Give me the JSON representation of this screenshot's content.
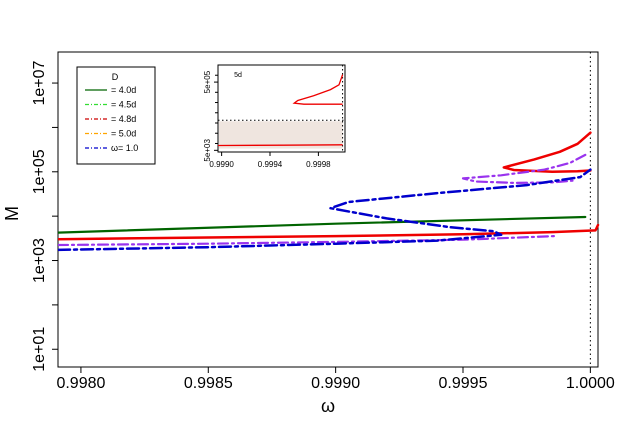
{
  "chart_data": {
    "type": "line",
    "xlabel": "ω",
    "ylabel": "M",
    "xlim": [
      0.99791,
      1.00003
    ],
    "ylog": true,
    "ylim_log10": [
      0.6,
      7.7
    ],
    "x_ticks": [
      {
        "value": 0.998,
        "label": "0.9980"
      },
      {
        "value": 0.9985,
        "label": "0.9985"
      },
      {
        "value": 0.999,
        "label": "0.9990"
      },
      {
        "value": 0.9995,
        "label": "0.9995"
      },
      {
        "value": 1.0,
        "label": "1.0000"
      }
    ],
    "y_ticks": [
      {
        "log10": 1,
        "label": "1e+01"
      },
      {
        "log10": 3,
        "label": "1e+03"
      },
      {
        "log10": 5,
        "label": "1e+05"
      },
      {
        "log10": 7,
        "label": "1e+07"
      }
    ],
    "y_minor_ticks_log10": [
      2,
      4,
      6
    ],
    "vline_x": 1.0,
    "legend": {
      "title": "D",
      "placement": "top-left",
      "entries": [
        {
          "label": "= 4.0d",
          "color": "#006400",
          "dash": "solid"
        },
        {
          "label": "= 4.5d",
          "color": "#33dd33",
          "dash": "dashdot"
        },
        {
          "label": "= 4.8d",
          "color": "#cc0000",
          "dash": "dashdot"
        },
        {
          "label": "= 5.0d",
          "color": "#ffa500",
          "dash": "dashdot"
        },
        {
          "label": "ω= 1.0",
          "color": "#0000cc",
          "dash": "dashdot"
        }
      ]
    },
    "series": [
      {
        "color": "#006400",
        "width": 2.2,
        "dash": "",
        "points": [
          [
            0.99791,
            3.63
          ],
          [
            0.999,
            3.83
          ],
          [
            0.99998,
            3.98
          ]
        ]
      },
      {
        "color": "#ee0000",
        "width": 2.5,
        "dash": "",
        "points": [
          [
            0.99791,
            3.48
          ],
          [
            0.9985,
            3.52
          ],
          [
            0.999,
            3.55
          ],
          [
            0.9995,
            3.59
          ],
          [
            0.99985,
            3.64
          ],
          [
            1.00002,
            3.68
          ],
          [
            1.00003,
            3.8
          ]
        ]
      },
      {
        "color": "#ee0000",
        "width": 2.5,
        "dash": "",
        "points": [
          [
            1.0,
            5.88
          ],
          [
            0.99995,
            5.63
          ],
          [
            0.99988,
            5.45
          ],
          [
            0.99978,
            5.28
          ],
          [
            0.99966,
            5.1
          ],
          [
            0.9997,
            5.04
          ],
          [
            0.99985,
            5.0
          ],
          [
            0.99995,
            5.01
          ],
          [
            1.0,
            5.03
          ]
        ]
      },
      {
        "color": "#9933ee",
        "width": 2.2,
        "dash": "10,4,2,4",
        "points": [
          [
            0.99791,
            3.35
          ],
          [
            0.9985,
            3.38
          ],
          [
            0.999,
            3.42
          ],
          [
            0.9995,
            3.47
          ],
          [
            0.99986,
            3.55
          ]
        ]
      },
      {
        "color": "#9933ee",
        "width": 2.2,
        "dash": "10,4,2,4",
        "points": [
          [
            0.99998,
            5.38
          ],
          [
            0.99992,
            5.2
          ],
          [
            0.99982,
            5.05
          ],
          [
            0.99965,
            4.92
          ],
          [
            0.9995,
            4.85
          ],
          [
            0.99955,
            4.78
          ],
          [
            0.9997,
            4.75
          ],
          [
            0.99985,
            4.76
          ],
          [
            0.99993,
            4.8
          ]
        ]
      },
      {
        "color": "#0000cc",
        "width": 2.5,
        "dash": "12,4,3,4",
        "points": [
          [
            0.99791,
            3.24
          ],
          [
            0.9985,
            3.3
          ],
          [
            0.999,
            3.38
          ],
          [
            0.9994,
            3.45
          ],
          [
            0.99965,
            3.58
          ],
          [
            0.99962,
            3.66
          ],
          [
            0.99945,
            3.75
          ],
          [
            0.9992,
            3.95
          ],
          [
            0.99898,
            4.18
          ],
          [
            0.99905,
            4.32
          ],
          [
            0.9994,
            4.52
          ],
          [
            0.99975,
            4.7
          ],
          [
            0.99996,
            4.88
          ],
          [
            1.0,
            5.05
          ]
        ]
      }
    ],
    "inset": {
      "label": "5d",
      "xlim": [
        0.99897,
        1.00002
      ],
      "ylog": true,
      "ylim_log10": [
        3.65,
        6.2
      ],
      "x_ticks": [
        {
          "value": 0.999,
          "label": "0.9990"
        },
        {
          "value": 0.9994,
          "label": "0.9994"
        },
        {
          "value": 0.9998,
          "label": "0.9998"
        }
      ],
      "y_ticks": [
        {
          "log10": 3.699,
          "label": "5e+03"
        },
        {
          "log10": 5.699,
          "label": "5e+05"
        }
      ],
      "shaded_band_log10": [
        3.75,
        4.55
      ],
      "hline_log10": 4.58,
      "vline_x": 1.0,
      "band_color": "#efe5df",
      "series": [
        {
          "color": "#ee0000",
          "points": [
            [
              1.0,
              5.92
            ],
            [
              0.99997,
              5.62
            ],
            [
              0.9999,
              5.48
            ],
            [
              0.99976,
              5.3
            ],
            [
              0.99963,
              5.16
            ],
            [
              0.9996,
              5.08
            ],
            [
              0.99968,
              5.05
            ],
            [
              0.9999,
              5.05
            ],
            [
              1.0,
              5.05
            ]
          ]
        },
        {
          "color": "#ee0000",
          "points": [
            [
              0.99897,
              3.84
            ],
            [
              0.9995,
              3.85
            ],
            [
              1.0,
              3.86
            ]
          ]
        }
      ]
    }
  }
}
